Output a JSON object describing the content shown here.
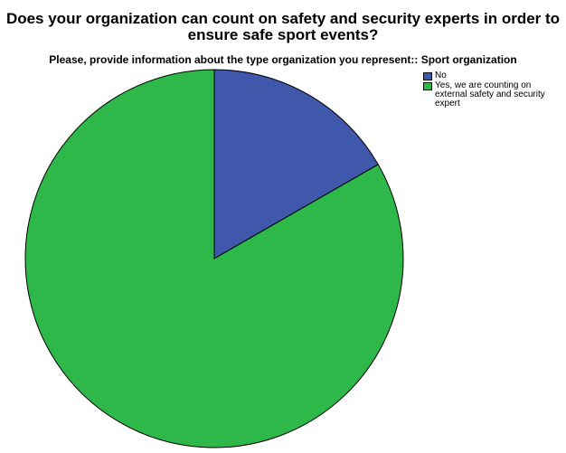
{
  "chart_data": {
    "type": "pie",
    "title": "Does your organization can count on safety and security experts in order to\nensure safe sport events?",
    "subtitle": "Please, provide information about the type organization you represent:: Sport organization",
    "categories": [
      "No",
      "Yes, we are counting on\nexternal safety and security\nexpert"
    ],
    "values": [
      16.7,
      83.3
    ],
    "colors": [
      "#3f58ab",
      "#2eb84a"
    ],
    "legend_position": "top-right"
  }
}
